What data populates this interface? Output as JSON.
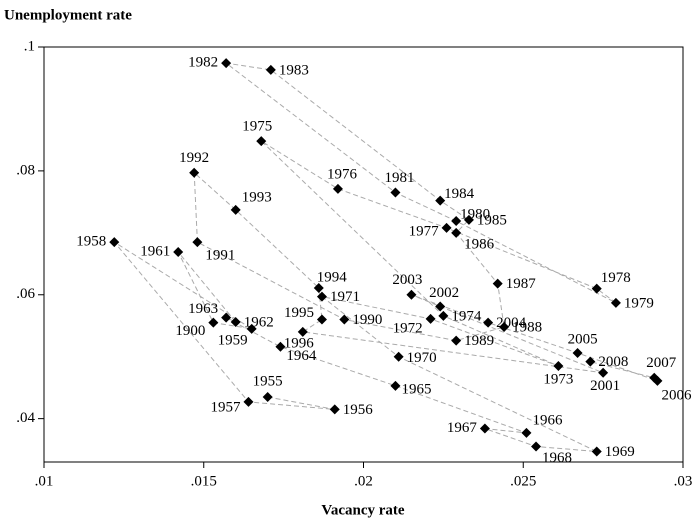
{
  "chart_data": {
    "type": "scatter",
    "y_label": "Unemployment rate",
    "x_label": "Vacancy rate",
    "color": "#000000",
    "line_color": "#aaaaaa",
    "connect": true,
    "point_labels": [
      "1955",
      "1956",
      "1957",
      "1958",
      "1959",
      "1900",
      "1961",
      "1962",
      "1963",
      "1964",
      "1965",
      "1966",
      "1967",
      "1968",
      "1969",
      "1970",
      "1971",
      "1972",
      "1973",
      "1974",
      "1975",
      "1976",
      "1977",
      "1978",
      "1979",
      "1980",
      "1981",
      "1982",
      "1983",
      "1984",
      "1985",
      "1986",
      "1987",
      "1988",
      "1989",
      "1990",
      "1991",
      "1992",
      "1993",
      "1994",
      "1995",
      "1996",
      "2001",
      "2002",
      "2003",
      "2004",
      "2005",
      "2006",
      "2007",
      "2008"
    ],
    "x": [
      0.017,
      0.0191,
      0.0164,
      0.0122,
      0.0165,
      0.0153,
      0.0142,
      0.016,
      0.0157,
      0.0174,
      0.021,
      0.0251,
      0.0238,
      0.0254,
      0.0273,
      0.0211,
      0.0187,
      0.0221,
      0.0261,
      0.0225,
      0.0168,
      0.0192,
      0.0226,
      0.0273,
      0.0279,
      0.0229,
      0.021,
      0.0157,
      0.0171,
      0.0224,
      0.0233,
      0.0229,
      0.0242,
      0.0244,
      0.0229,
      0.0194,
      0.0148,
      0.0147,
      0.016,
      0.0186,
      0.0187,
      0.0181,
      0.0275,
      0.0224,
      0.0215,
      0.0239,
      0.0267,
      0.0292,
      0.0291,
      0.0271
    ],
    "values": [
      0.0435,
      0.0415,
      0.0427,
      0.0685,
      0.0545,
      0.0555,
      0.0669,
      0.0556,
      0.0563,
      0.0516,
      0.0453,
      0.0377,
      0.0384,
      0.0355,
      0.0347,
      0.05,
      0.0597,
      0.0561,
      0.0485,
      0.0566,
      0.0848,
      0.0771,
      0.0708,
      0.061,
      0.0587,
      0.0719,
      0.0765,
      0.0974,
      0.0963,
      0.0752,
      0.0721,
      0.07,
      0.0618,
      0.0548,
      0.0526,
      0.056,
      0.0685,
      0.0797,
      0.0737,
      0.0611,
      0.056,
      0.054,
      0.0474,
      0.0581,
      0.06,
      0.0555,
      0.0506,
      0.0461,
      0.0466,
      0.0492
    ],
    "xlim": [
      0.01,
      0.03
    ],
    "ylim": [
      0.033,
      0.1
    ],
    "xticks": [
      {
        "value": 0.01,
        "label": ".01"
      },
      {
        "value": 0.015,
        "label": ".015"
      },
      {
        "value": 0.02,
        "label": ".02"
      },
      {
        "value": 0.025,
        "label": ".025"
      },
      {
        "value": 0.03,
        "label": ".03"
      }
    ],
    "yticks": [
      {
        "value": 0.04,
        "label": ".04"
      },
      {
        "value": 0.06,
        "label": ".06"
      },
      {
        "value": 0.08,
        "label": ".08"
      },
      {
        "value": 0.1,
        "label": ".1"
      }
    ]
  }
}
